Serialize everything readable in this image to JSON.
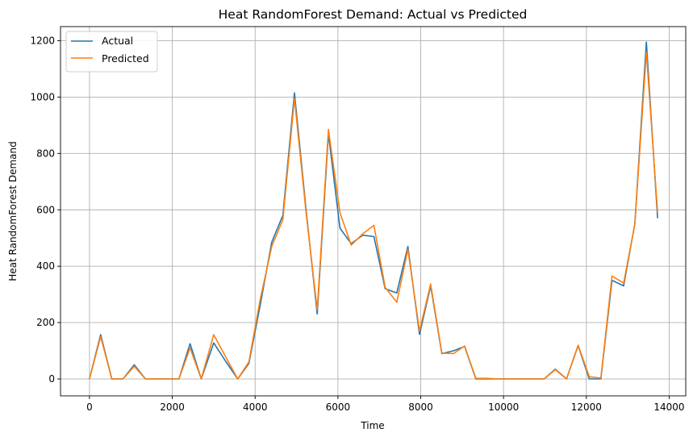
{
  "chart_data": {
    "type": "line",
    "title": "Heat RandomForest Demand: Actual vs Predicted",
    "xlabel": "Time",
    "ylabel": "Heat RandomForest Demand",
    "xlim": [
      -700,
      14400
    ],
    "ylim": [
      -60,
      1250
    ],
    "xticks": [
      0,
      2000,
      4000,
      6000,
      8000,
      10000,
      12000,
      14000
    ],
    "yticks": [
      0,
      200,
      400,
      600,
      800,
      1000,
      1200
    ],
    "grid": true,
    "legend_position": "top-left",
    "x": [
      0,
      270,
      540,
      810,
      1080,
      1350,
      1620,
      1890,
      2160,
      2430,
      2700,
      3000,
      3300,
      3580,
      3850,
      4120,
      4400,
      4670,
      4950,
      5230,
      5500,
      5770,
      6050,
      6320,
      6600,
      6870,
      7140,
      7420,
      7690,
      7970,
      8240,
      8510,
      8790,
      9060,
      9330,
      9610,
      9880,
      10160,
      10430,
      10700,
      10980,
      11250,
      11520,
      11800,
      12070,
      12350,
      12620,
      12900,
      13170,
      13450,
      13720
    ],
    "series": [
      {
        "name": "Actual",
        "color": "#1f77b4",
        "values": [
          0,
          157,
          0,
          0,
          50,
          0,
          0,
          0,
          0,
          125,
          0,
          128,
          60,
          0,
          55,
          260,
          485,
          580,
          1015,
          600,
          230,
          870,
          535,
          480,
          510,
          505,
          320,
          305,
          470,
          158,
          330,
          90,
          100,
          115,
          0,
          0,
          0,
          0,
          0,
          0,
          0,
          35,
          0,
          118,
          0,
          0,
          350,
          330,
          550,
          1195,
          570
        ]
      },
      {
        "name": "Predicted",
        "color": "#ff7f0e",
        "values": [
          0,
          150,
          0,
          0,
          45,
          0,
          0,
          0,
          0,
          110,
          0,
          157,
          75,
          0,
          60,
          280,
          470,
          565,
          995,
          590,
          245,
          885,
          590,
          475,
          515,
          545,
          325,
          272,
          460,
          170,
          337,
          92,
          90,
          117,
          2,
          2,
          0,
          0,
          0,
          0,
          0,
          33,
          0,
          120,
          8,
          3,
          365,
          340,
          548,
          1160,
          590
        ]
      }
    ]
  }
}
